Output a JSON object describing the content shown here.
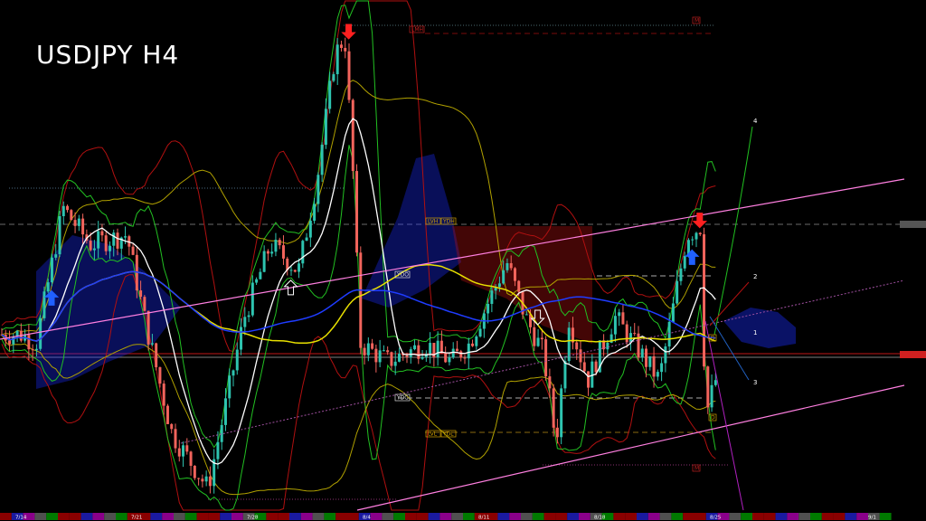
{
  "header": {
    "title": "USDJPY H4"
  },
  "colors": {
    "background": "#000000",
    "bull_candle": "#2ec4b0",
    "bear_candle": "#f2645c",
    "ma_fast": "#ffffff",
    "ma_mid": "#e8e000",
    "ma_slow": "#1f3cff",
    "bands": "#b01010",
    "envelope": "#22c022",
    "channel": "#ff7fe0",
    "cloud_bull": "#1a2cff",
    "cloud_bear": "#c01010"
  },
  "chart_data": {
    "type": "candlestick",
    "symbol": "USDJPY",
    "timeframe": "H4",
    "x_tick_labels": [
      "7/14",
      "7/21",
      "7/28",
      "8/4",
      "8/11",
      "8/18",
      "8/25",
      "9/1"
    ],
    "ylim": [
      145.85,
      150.9
    ],
    "close_path": [
      [
        "7/14 00",
        147.6
      ],
      [
        "7/14 14",
        147.5
      ],
      [
        "7/15 18",
        148.96
      ],
      [
        "7/16 22",
        148.57
      ],
      [
        "7/18 12",
        148.67
      ],
      [
        "7/21 06",
        147.79
      ],
      [
        "7/22 11",
        146.53
      ],
      [
        "7/24 00",
        145.95
      ],
      [
        "7/25 14",
        147.79
      ],
      [
        "7/28 17",
        148.57
      ],
      [
        "7/29 22",
        148.28
      ],
      [
        "7/30 17",
        149.25
      ],
      [
        "7/31 12",
        150.61
      ],
      [
        "7/31 22",
        150.8
      ],
      [
        "8/1 06",
        149.44
      ],
      [
        "8/1 14",
        147.5
      ],
      [
        "8/4 19",
        147.31
      ],
      [
        "8/6 10",
        147.5
      ],
      [
        "8/7 12",
        147.31
      ],
      [
        "8/8 07",
        147.5
      ],
      [
        "8/11 22",
        148.38
      ],
      [
        "8/12 17",
        147.79
      ],
      [
        "8/13 12",
        147.4
      ],
      [
        "8/14 01",
        146.43
      ],
      [
        "8/14 14",
        147.79
      ],
      [
        "8/15 10",
        147.11
      ],
      [
        "8/18 14",
        147.79
      ],
      [
        "8/19 10",
        147.5
      ],
      [
        "8/20 12",
        147.11
      ],
      [
        "8/21 17",
        148.67
      ],
      [
        "8/22 07",
        148.76
      ],
      [
        "8/22 12",
        146.72
      ],
      [
        "8/22 22",
        147.11
      ]
    ],
    "level_labels": {
      "lmh": "LMH",
      "m_top": "M",
      "m_bottom": "M",
      "lvh": "LVH",
      "ydh": "YDH",
      "ydo": "YDO",
      "ydc": "YDC",
      "lvl": "LVL",
      "ydl": "YDL",
      "d_high": "D",
      "d_low": "D"
    },
    "wave_labels": [
      "1",
      "2",
      "3",
      "4"
    ],
    "signals": [
      {
        "type": "buy",
        "date": "7/15 06",
        "style": "solid-blue"
      },
      {
        "type": "buy",
        "date": "7/29 14",
        "style": "outline-white"
      },
      {
        "type": "sell",
        "date": "8/1 02",
        "style": "solid-red"
      },
      {
        "type": "sell",
        "date": "8/13 06",
        "style": "outline-white"
      },
      {
        "type": "buy",
        "date": "8/21 22",
        "style": "solid-blue"
      },
      {
        "type": "sell",
        "date": "8/22 06",
        "style": "solid-red"
      }
    ]
  }
}
